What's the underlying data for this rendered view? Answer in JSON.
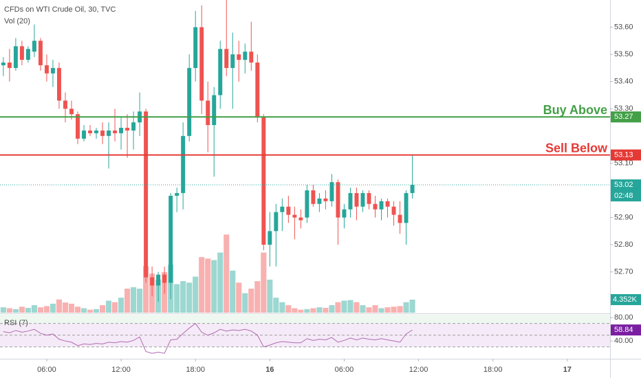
{
  "chart_data": {
    "type": "candlestick",
    "title": "CFDs on WTI Crude Oil, 30, TVC",
    "volume_label": "Vol (20)",
    "up_color": "#26a69a",
    "down_color": "#ef5350",
    "x": [
      2.5,
      3,
      3.5,
      4,
      4.5,
      5,
      5.5,
      6,
      6.5,
      7,
      7.5,
      8,
      8.5,
      9,
      9.5,
      10,
      10.5,
      11,
      11.5,
      12,
      12.5,
      13,
      13.5,
      14,
      14.5,
      15,
      15.5,
      16,
      16.5,
      17,
      17.5,
      18,
      18.5,
      19,
      19.5,
      20,
      20.5,
      21,
      21.5,
      22,
      22.5,
      23,
      23.5,
      24,
      24.5,
      25,
      25.5,
      26,
      26.5,
      27,
      27.5,
      28,
      28.5,
      29,
      29.5,
      30,
      30.5,
      31,
      31.5,
      32,
      32.5,
      33,
      33.5,
      34,
      34.5,
      35,
      35.5
    ],
    "open": [
      53.46,
      53.47,
      53.45,
      53.53,
      53.48,
      53.51,
      53.55,
      53.46,
      53.43,
      53.45,
      53.33,
      53.3,
      53.28,
      53.19,
      53.22,
      53.21,
      53.22,
      53.2,
      53.22,
      53.21,
      53.23,
      53.22,
      53.25,
      53.29,
      52.68,
      52.65,
      52.69,
      52.66,
      52.98,
      52.99,
      53.2,
      53.45,
      53.6,
      53.33,
      53.24,
      53.35,
      53.52,
      53.45,
      53.5,
      53.48,
      53.51,
      53.47,
      53.27,
      52.8,
      52.85,
      52.92,
      52.94,
      52.91,
      52.9,
      52.9,
      53.0,
      52.95,
      52.97,
      52.96,
      53.03,
      52.9,
      52.93,
      52.99,
      52.94,
      52.99,
      52.95,
      52.93,
      52.96,
      52.94,
      52.91,
      52.88,
      52.99
    ],
    "high": [
      53.49,
      53.52,
      53.56,
      53.55,
      53.53,
      53.61,
      53.56,
      53.5,
      53.48,
      53.47,
      53.36,
      53.33,
      53.29,
      53.24,
      53.24,
      53.23,
      53.25,
      53.25,
      53.3,
      53.27,
      53.28,
      53.29,
      53.36,
      53.3,
      52.72,
      52.7,
      52.72,
      52.99,
      53.01,
      53.25,
      53.5,
      53.66,
      53.68,
      53.4,
      53.38,
      53.55,
      53.7,
      53.58,
      53.55,
      53.54,
      53.62,
      53.5,
      53.28,
      52.92,
      52.95,
      52.97,
      52.98,
      52.94,
      52.93,
      53.02,
      53.02,
      52.99,
      53.0,
      53.06,
      53.04,
      52.95,
      53.01,
      53.01,
      53.0,
      53.0,
      52.98,
      52.97,
      52.97,
      52.96,
      52.96,
      53.0,
      53.13
    ],
    "low": [
      53.42,
      53.4,
      53.44,
      53.46,
      53.47,
      53.49,
      53.44,
      53.4,
      53.38,
      53.3,
      53.25,
      53.26,
      53.17,
      53.18,
      53.2,
      53.19,
      53.17,
      53.08,
      53.18,
      53.15,
      53.12,
      53.15,
      53.2,
      52.66,
      52.61,
      52.59,
      52.62,
      52.6,
      52.92,
      52.93,
      53.18,
      53.4,
      53.28,
      53.14,
      53.05,
      53.3,
      53.42,
      53.3,
      53.4,
      53.43,
      53.44,
      53.25,
      52.78,
      52.72,
      52.72,
      52.85,
      52.88,
      52.82,
      52.86,
      52.88,
      52.94,
      52.92,
      52.93,
      52.94,
      52.8,
      52.86,
      52.9,
      52.89,
      52.92,
      52.93,
      52.9,
      52.89,
      52.9,
      52.87,
      52.84,
      52.8,
      52.97
    ],
    "close": [
      53.47,
      53.45,
      53.53,
      53.48,
      53.52,
      53.55,
      53.46,
      53.43,
      53.45,
      53.33,
      53.3,
      53.28,
      53.19,
      53.22,
      53.21,
      53.22,
      53.2,
      53.22,
      53.21,
      53.23,
      53.22,
      53.25,
      53.29,
      52.68,
      52.65,
      52.69,
      52.66,
      52.98,
      52.99,
      53.2,
      53.45,
      53.6,
      53.33,
      53.24,
      53.35,
      53.52,
      53.45,
      53.5,
      53.48,
      53.51,
      53.47,
      53.27,
      52.8,
      52.85,
      52.92,
      52.94,
      52.91,
      52.9,
      52.89,
      53.0,
      52.95,
      52.97,
      52.96,
      53.03,
      52.9,
      52.93,
      52.99,
      52.94,
      52.99,
      52.95,
      52.93,
      52.96,
      52.94,
      52.91,
      52.88,
      52.99,
      53.02
    ],
    "volume": {
      "values": [
        1.8,
        1.5,
        1.2,
        2.0,
        1.6,
        2.5,
        1.8,
        2.2,
        3.0,
        4.4,
        3.4,
        3.0,
        2.0,
        1.5,
        1.0,
        1.2,
        2.5,
        4.0,
        3.5,
        5.0,
        8.0,
        8.5,
        8.0,
        15.5,
        13.0,
        11.0,
        13.5,
        16.0,
        9.5,
        10.5,
        10.0,
        12.0,
        18.5,
        18.0,
        17.5,
        20.0,
        26.0,
        14.0,
        10.0,
        6.5,
        8.0,
        10.5,
        20.0,
        11.0,
        5.0,
        3.5,
        2.5,
        1.5,
        1.0,
        1.2,
        1.5,
        1.8,
        1.6,
        2.5,
        3.5,
        4.0,
        4.2,
        3.5,
        2.5,
        1.8,
        2.5,
        1.5,
        1.8,
        2.0,
        2.2,
        3.5,
        4.352
      ],
      "ylim": [
        0,
        104
      ],
      "last_label": "4.352K"
    },
    "xlim": [
      2.23,
      51.45
    ],
    "xticks": [
      {
        "value": 6,
        "label": "06:00"
      },
      {
        "value": 12,
        "label": "12:00"
      },
      {
        "value": 18,
        "label": "18:00"
      },
      {
        "value": 24,
        "label": "16"
      },
      {
        "value": 30,
        "label": "06:00"
      },
      {
        "value": 36,
        "label": "12:00"
      },
      {
        "value": 42,
        "label": "18:00"
      },
      {
        "value": 48,
        "label": "17"
      }
    ],
    "ylim": [
      52.55,
      53.7
    ],
    "yticks": [
      {
        "value": 52.7,
        "label": "52.70"
      },
      {
        "value": 52.8,
        "label": "52.80"
      },
      {
        "value": 52.9,
        "label": "52.90"
      },
      {
        "value": 53.1,
        "label": "53.10"
      },
      {
        "value": 53.3,
        "label": "53.30"
      },
      {
        "value": 53.4,
        "label": "53.40"
      },
      {
        "value": 53.5,
        "label": "53.50"
      },
      {
        "value": 53.6,
        "label": "53.60"
      }
    ],
    "levels": [
      {
        "label": "Buy Above",
        "value": 53.27,
        "color": "#43a047"
      },
      {
        "label": "Sell Below",
        "value": 53.13,
        "color": "#e53935"
      }
    ],
    "countdown": "02:48",
    "rsi": {
      "name": "RSI (7)",
      "color": "#b06ab3",
      "values": [
        56,
        54,
        58,
        55,
        57,
        60,
        53,
        50,
        52,
        43,
        40,
        38,
        32,
        35,
        34,
        36,
        35,
        38,
        37,
        39,
        38,
        41,
        47,
        22,
        19,
        21,
        19,
        42,
        43,
        53,
        62,
        70,
        55,
        50,
        54,
        60,
        57,
        59,
        58,
        60,
        57,
        50,
        30,
        33,
        37,
        39,
        38,
        37,
        37,
        44,
        41,
        43,
        42,
        46,
        38,
        41,
        45,
        42,
        45,
        43,
        42,
        44,
        42,
        40,
        38,
        52,
        58.84
      ],
      "ylim": [
        9.7,
        84.8
      ],
      "yticks": [
        {
          "value": 80,
          "label": "80.00"
        },
        {
          "value": 40,
          "label": "40.00"
        }
      ],
      "levels": [
        70,
        50,
        30
      ]
    }
  }
}
